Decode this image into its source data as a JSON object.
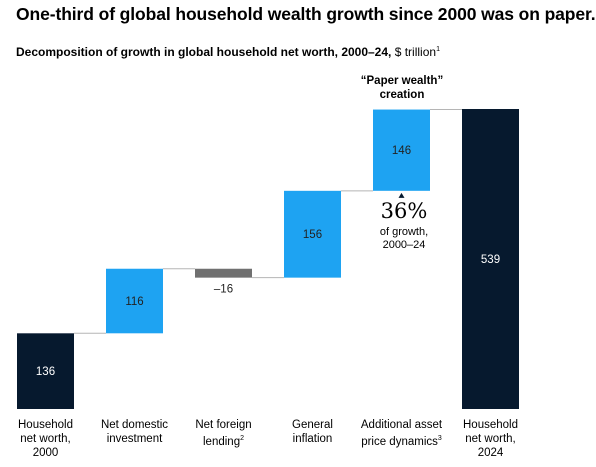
{
  "title": "One-third of global household wealth growth since 2000 was on paper.",
  "subtitle": {
    "text": "Decomposition of growth in global household net worth, 2000–24, ",
    "unit": "$ trillion",
    "footnote": "1"
  },
  "annotation": {
    "label": "“Paper wealth”\ncreation",
    "percent": "36%",
    "percent_desc": "of growth,\n2000–24"
  },
  "colors": {
    "dark": "#06192e",
    "blue": "#1ea3f2",
    "gray": "#707070",
    "connector": "#b5b5b5",
    "text_light": "#ffffff",
    "text_dark": "#222222"
  },
  "chart_data": {
    "type": "bar",
    "subtype": "waterfall",
    "unit": "$ trillion",
    "categories": [
      "Household net worth, 2000",
      "Net domestic investment",
      "Net foreign lending",
      "General inflation",
      "Additional asset price dynamics",
      "Household net worth, 2024"
    ],
    "category_labels": [
      {
        "text": "Household\nnet worth,\n2000",
        "footnote": ""
      },
      {
        "text": "Net domestic\ninvestment",
        "footnote": ""
      },
      {
        "text": "Net foreign\nlending",
        "footnote": "2"
      },
      {
        "text": "General\ninflation",
        "footnote": ""
      },
      {
        "text": "Additional asset\nprice dynamics",
        "footnote": "3"
      },
      {
        "text": "Household\nnet worth,\n2024",
        "footnote": ""
      }
    ],
    "values": [
      136,
      116,
      -16,
      156,
      146,
      539
    ],
    "value_labels": [
      "136",
      "116",
      "–16",
      "156",
      "146",
      "539"
    ],
    "kinds": [
      "total",
      "increase",
      "decrease",
      "increase",
      "increase",
      "total"
    ],
    "ylim": [
      0,
      539
    ],
    "grid": false,
    "legend": "none"
  }
}
